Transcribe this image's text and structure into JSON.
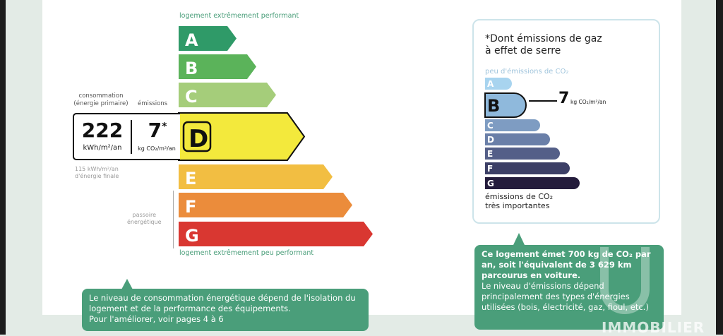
{
  "energy": {
    "top_label": "logement extrêmement performant",
    "bottom_label": "logement extrêmement peu performant",
    "classes": [
      {
        "letter": "A",
        "color": "#2f9a68"
      },
      {
        "letter": "B",
        "color": "#5bb35a"
      },
      {
        "letter": "C",
        "color": "#a5cd7a"
      },
      {
        "letter": "D",
        "color": "#f3e93c"
      },
      {
        "letter": "E",
        "color": "#f2be42"
      },
      {
        "letter": "F",
        "color": "#eb8c3b"
      },
      {
        "letter": "G",
        "color": "#d93731"
      }
    ],
    "current_class": "D",
    "consumption_header": "consommation\n(énergie primaire)",
    "emissions_header": "émissions",
    "consumption_value": "222",
    "consumption_unit": "kWh/m²/an",
    "emissions_value": "7",
    "emissions_star": "*",
    "emissions_unit": "kg CO₂/m²/an",
    "final_energy": "115 kWh/m²/an\nd'énergie finale",
    "passoire": "passoire\nénergétique"
  },
  "ges": {
    "title": "*Dont émissions de gaz\nà effet de serre",
    "top_label": "peu d'émissions de CO₂",
    "bottom_label": "émissions de CO₂\ntrès importantes",
    "classes": [
      {
        "letter": "A",
        "color": "#a8d4ef"
      },
      {
        "letter": "B",
        "color": "#8fb9dc"
      },
      {
        "letter": "C",
        "color": "#7e9cc2"
      },
      {
        "letter": "D",
        "color": "#6a7fa8"
      },
      {
        "letter": "E",
        "color": "#545f88"
      },
      {
        "letter": "F",
        "color": "#3c3f66"
      },
      {
        "letter": "G",
        "color": "#241c3c"
      }
    ],
    "current_class": "B",
    "value": "7",
    "unit": "kg CO₂/m²/an"
  },
  "bubble_left": {
    "lines": [
      "Le niveau de consommation énergétique dépend de l'isolation du",
      "logement et de la performance des équipements.",
      "Pour l'améliorer, voir pages 4 à 6"
    ]
  },
  "bubble_right": {
    "bold": "Ce logement émet 700 kg de CO₂ par an, soit l'équivalent de 3 629 km parcourus en voiture.",
    "text": "Le niveau d'émissions dépend principalement des types d'énergies utilisées (bois, électricité, gaz, fioul, etc.)"
  },
  "watermark": "IMMOBILIER"
}
